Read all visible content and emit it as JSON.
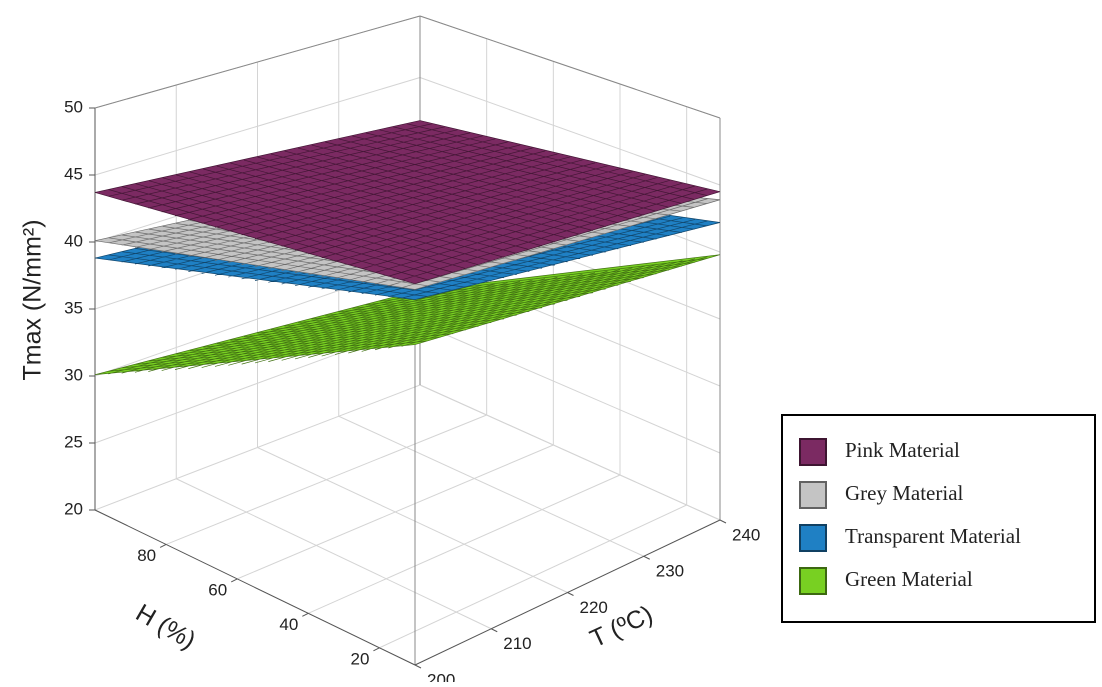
{
  "chart_data": {
    "type": "surface3d",
    "zlabel": "Tmax (N/mm²)",
    "ylabel": "H (%)",
    "xlabel": "T (ºC)",
    "xlim": [
      200,
      240
    ],
    "xticks": [
      200,
      210,
      220,
      230,
      240
    ],
    "ylim": [
      10,
      100
    ],
    "yticks": [
      20,
      40,
      60,
      80
    ],
    "zlim": [
      20,
      50
    ],
    "zticks": [
      20,
      25,
      30,
      35,
      40,
      45,
      50
    ],
    "grid": true,
    "legend": "right",
    "series": [
      {
        "name": "Pink Material",
        "color": "#7b2a62",
        "values": [
          [
            46.3,
            44.5
          ],
          [
            43.7,
            41.5
          ]
        ]
      },
      {
        "name": "Grey Material",
        "color": "#c4c4c4",
        "values": [
          [
            45.9,
            43.9
          ],
          [
            40.1,
            37.5
          ]
        ]
      },
      {
        "name": "Transparent Material",
        "color": "#1f80c4",
        "values": [
          [
            45.2,
            42.2
          ],
          [
            38.8,
            36.7
          ]
        ]
      },
      {
        "name": "Green Material",
        "color": "#78d022",
        "values": [
          [
            42.1,
            39.8
          ],
          [
            30.1,
            27.7
          ]
        ]
      }
    ]
  }
}
